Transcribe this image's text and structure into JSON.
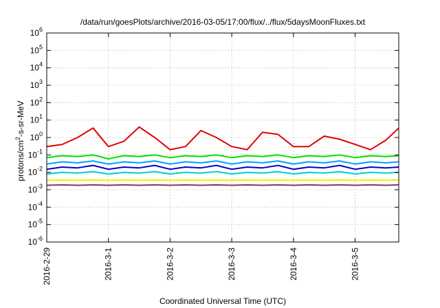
{
  "chart_data": {
    "type": "line",
    "title": "/data/run/goesPlots/archive/2016-03-05/17:00/flux/../flux/5daysMoonFluxes.txt",
    "xlabel": "Coordinated Universal Time (UTC)",
    "ylabel": "protons/cm2-s-sr-MeV",
    "ylabel_parts": {
      "pre": "protons/cm",
      "sup": "2",
      "post": "-s-sr-MeV"
    },
    "yscale": "log",
    "ylim": [
      1e-06,
      1000000.0
    ],
    "xlim": [
      "2016-02-29 00:00",
      "2016-03-05 17:00"
    ],
    "grid": true,
    "legend": "none",
    "y_ticks": [
      {
        "base": "10",
        "exp": "-6",
        "value": 1e-06
      },
      {
        "base": "10",
        "exp": "-5",
        "value": 1e-05
      },
      {
        "base": "10",
        "exp": "-4",
        "value": 0.0001
      },
      {
        "base": "10",
        "exp": "-3",
        "value": 0.001
      },
      {
        "base": "10",
        "exp": "-2",
        "value": 0.01
      },
      {
        "base": "10",
        "exp": "-1",
        "value": 0.1
      },
      {
        "base": "10",
        "exp": "0",
        "value": 1
      },
      {
        "base": "10",
        "exp": "1",
        "value": 10
      },
      {
        "base": "10",
        "exp": "2",
        "value": 100
      },
      {
        "base": "10",
        "exp": "3",
        "value": 1000
      },
      {
        "base": "10",
        "exp": "4",
        "value": 10000
      },
      {
        "base": "10",
        "exp": "5",
        "value": 100000
      },
      {
        "base": "10",
        "exp": "6",
        "value": 1000000
      }
    ],
    "x_ticks": [
      {
        "label": "2016-2-29",
        "date": "2016-02-29 00:00"
      },
      {
        "label": "2016-3-1",
        "date": "2016-03-01 00:00"
      },
      {
        "label": "2016-3-2",
        "date": "2016-03-02 00:00"
      },
      {
        "label": "2016-3-3",
        "date": "2016-03-03 00:00"
      },
      {
        "label": "2016-3-4",
        "date": "2016-03-04 00:00"
      },
      {
        "label": "2016-3-5",
        "date": "2016-03-05 00:00"
      }
    ],
    "series": [
      {
        "color": "#e00000",
        "x": [
          "2016-02-29 00:00",
          "2016-02-29 06:00",
          "2016-02-29 12:00",
          "2016-02-29 18:00",
          "2016-03-01 00:00",
          "2016-03-01 06:00",
          "2016-03-01 12:00",
          "2016-03-01 18:00",
          "2016-03-02 00:00",
          "2016-03-02 06:00",
          "2016-03-02 12:00",
          "2016-03-02 18:00",
          "2016-03-03 00:00",
          "2016-03-03 06:00",
          "2016-03-03 12:00",
          "2016-03-03 18:00",
          "2016-03-04 00:00",
          "2016-03-04 06:00",
          "2016-03-04 12:00",
          "2016-03-04 18:00",
          "2016-03-05 00:00",
          "2016-03-05 06:00",
          "2016-03-05 12:00",
          "2016-03-05 17:00"
        ],
        "values": [
          0.3,
          0.4,
          1.0,
          3.5,
          0.3,
          0.6,
          4.0,
          1.0,
          0.2,
          0.3,
          2.5,
          1.0,
          0.3,
          0.2,
          2.0,
          1.5,
          0.3,
          0.3,
          1.2,
          0.8,
          0.4,
          0.2,
          0.7,
          3.5
        ]
      },
      {
        "color": "#00e000",
        "x": [
          "2016-02-29 00:00",
          "2016-02-29 06:00",
          "2016-02-29 12:00",
          "2016-02-29 18:00",
          "2016-03-01 00:00",
          "2016-03-01 06:00",
          "2016-03-01 12:00",
          "2016-03-01 18:00",
          "2016-03-02 00:00",
          "2016-03-02 06:00",
          "2016-03-02 12:00",
          "2016-03-02 18:00",
          "2016-03-03 00:00",
          "2016-03-03 06:00",
          "2016-03-03 12:00",
          "2016-03-03 18:00",
          "2016-03-04 00:00",
          "2016-03-04 06:00",
          "2016-03-04 12:00",
          "2016-03-04 18:00",
          "2016-03-05 00:00",
          "2016-03-05 06:00",
          "2016-03-05 12:00",
          "2016-03-05 17:00"
        ],
        "values": [
          0.07,
          0.09,
          0.08,
          0.1,
          0.06,
          0.09,
          0.08,
          0.1,
          0.07,
          0.09,
          0.08,
          0.1,
          0.07,
          0.09,
          0.08,
          0.1,
          0.07,
          0.09,
          0.08,
          0.1,
          0.07,
          0.09,
          0.08,
          0.09
        ]
      },
      {
        "color": "#00a0ff",
        "x": [
          "2016-02-29 00:00",
          "2016-02-29 06:00",
          "2016-02-29 12:00",
          "2016-02-29 18:00",
          "2016-03-01 00:00",
          "2016-03-01 06:00",
          "2016-03-01 12:00",
          "2016-03-01 18:00",
          "2016-03-02 00:00",
          "2016-03-02 06:00",
          "2016-03-02 12:00",
          "2016-03-02 18:00",
          "2016-03-03 00:00",
          "2016-03-03 06:00",
          "2016-03-03 12:00",
          "2016-03-03 18:00",
          "2016-03-04 00:00",
          "2016-03-04 06:00",
          "2016-03-04 12:00",
          "2016-03-04 18:00",
          "2016-03-05 00:00",
          "2016-03-05 06:00",
          "2016-03-05 12:00",
          "2016-03-05 17:00"
        ],
        "values": [
          0.03,
          0.04,
          0.035,
          0.045,
          0.03,
          0.04,
          0.035,
          0.045,
          0.03,
          0.04,
          0.035,
          0.045,
          0.03,
          0.04,
          0.035,
          0.045,
          0.03,
          0.04,
          0.035,
          0.045,
          0.03,
          0.04,
          0.035,
          0.04
        ]
      },
      {
        "color": "#0000d0",
        "x": [
          "2016-02-29 00:00",
          "2016-02-29 06:00",
          "2016-02-29 12:00",
          "2016-02-29 18:00",
          "2016-03-01 00:00",
          "2016-03-01 06:00",
          "2016-03-01 12:00",
          "2016-03-01 18:00",
          "2016-03-02 00:00",
          "2016-03-02 06:00",
          "2016-03-02 12:00",
          "2016-03-02 18:00",
          "2016-03-03 00:00",
          "2016-03-03 06:00",
          "2016-03-03 12:00",
          "2016-03-03 18:00",
          "2016-03-04 00:00",
          "2016-03-04 06:00",
          "2016-03-04 12:00",
          "2016-03-04 18:00",
          "2016-03-05 00:00",
          "2016-03-05 06:00",
          "2016-03-05 12:00",
          "2016-03-05 17:00"
        ],
        "values": [
          0.015,
          0.02,
          0.018,
          0.025,
          0.015,
          0.02,
          0.018,
          0.025,
          0.015,
          0.02,
          0.018,
          0.025,
          0.015,
          0.02,
          0.018,
          0.025,
          0.015,
          0.02,
          0.018,
          0.025,
          0.015,
          0.02,
          0.018,
          0.02
        ]
      },
      {
        "color": "#00d0d0",
        "x": [
          "2016-02-29 00:00",
          "2016-02-29 06:00",
          "2016-02-29 12:00",
          "2016-02-29 18:00",
          "2016-03-01 00:00",
          "2016-03-01 06:00",
          "2016-03-01 12:00",
          "2016-03-01 18:00",
          "2016-03-02 00:00",
          "2016-03-02 06:00",
          "2016-03-02 12:00",
          "2016-03-02 18:00",
          "2016-03-03 00:00",
          "2016-03-03 06:00",
          "2016-03-03 12:00",
          "2016-03-03 18:00",
          "2016-03-04 00:00",
          "2016-03-04 06:00",
          "2016-03-04 12:00",
          "2016-03-04 18:00",
          "2016-03-05 00:00",
          "2016-03-05 06:00",
          "2016-03-05 12:00",
          "2016-03-05 17:00"
        ],
        "values": [
          0.008,
          0.01,
          0.009,
          0.011,
          0.008,
          0.01,
          0.009,
          0.011,
          0.008,
          0.01,
          0.009,
          0.011,
          0.008,
          0.01,
          0.009,
          0.011,
          0.008,
          0.01,
          0.009,
          0.011,
          0.008,
          0.01,
          0.009,
          0.01
        ]
      },
      {
        "color": "#f0f000",
        "x": [
          "2016-02-29 00:00",
          "2016-02-29 06:00",
          "2016-02-29 12:00",
          "2016-02-29 18:00",
          "2016-03-01 00:00",
          "2016-03-01 06:00",
          "2016-03-01 12:00",
          "2016-03-01 18:00",
          "2016-03-02 00:00",
          "2016-03-02 06:00",
          "2016-03-02 12:00",
          "2016-03-02 18:00",
          "2016-03-03 00:00",
          "2016-03-03 06:00",
          "2016-03-03 12:00",
          "2016-03-03 18:00",
          "2016-03-04 00:00",
          "2016-03-04 06:00",
          "2016-03-04 12:00",
          "2016-03-04 18:00",
          "2016-03-05 00:00",
          "2016-03-05 06:00",
          "2016-03-05 12:00",
          "2016-03-05 17:00"
        ],
        "values": [
          0.0035,
          0.0036,
          0.0035,
          0.0036,
          0.0035,
          0.0036,
          0.0035,
          0.0036,
          0.0035,
          0.0036,
          0.0035,
          0.0036,
          0.0035,
          0.0036,
          0.0035,
          0.0036,
          0.0035,
          0.0036,
          0.0035,
          0.0036,
          0.0035,
          0.0036,
          0.0035,
          0.0036
        ]
      },
      {
        "color": "#903060",
        "x": [
          "2016-02-29 00:00",
          "2016-02-29 06:00",
          "2016-02-29 12:00",
          "2016-02-29 18:00",
          "2016-03-01 00:00",
          "2016-03-01 06:00",
          "2016-03-01 12:00",
          "2016-03-01 18:00",
          "2016-03-02 00:00",
          "2016-03-02 06:00",
          "2016-03-02 12:00",
          "2016-03-02 18:00",
          "2016-03-03 00:00",
          "2016-03-03 06:00",
          "2016-03-03 12:00",
          "2016-03-03 18:00",
          "2016-03-04 00:00",
          "2016-03-04 06:00",
          "2016-03-04 12:00",
          "2016-03-04 18:00",
          "2016-03-05 00:00",
          "2016-03-05 06:00",
          "2016-03-05 12:00",
          "2016-03-05 17:00"
        ],
        "values": [
          0.0018,
          0.0019,
          0.0018,
          0.0019,
          0.0018,
          0.0019,
          0.0018,
          0.0019,
          0.0018,
          0.0019,
          0.0018,
          0.0019,
          0.0018,
          0.0019,
          0.0018,
          0.0019,
          0.0018,
          0.0019,
          0.0018,
          0.0019,
          0.0018,
          0.0019,
          0.0018,
          0.0019
        ]
      }
    ]
  }
}
